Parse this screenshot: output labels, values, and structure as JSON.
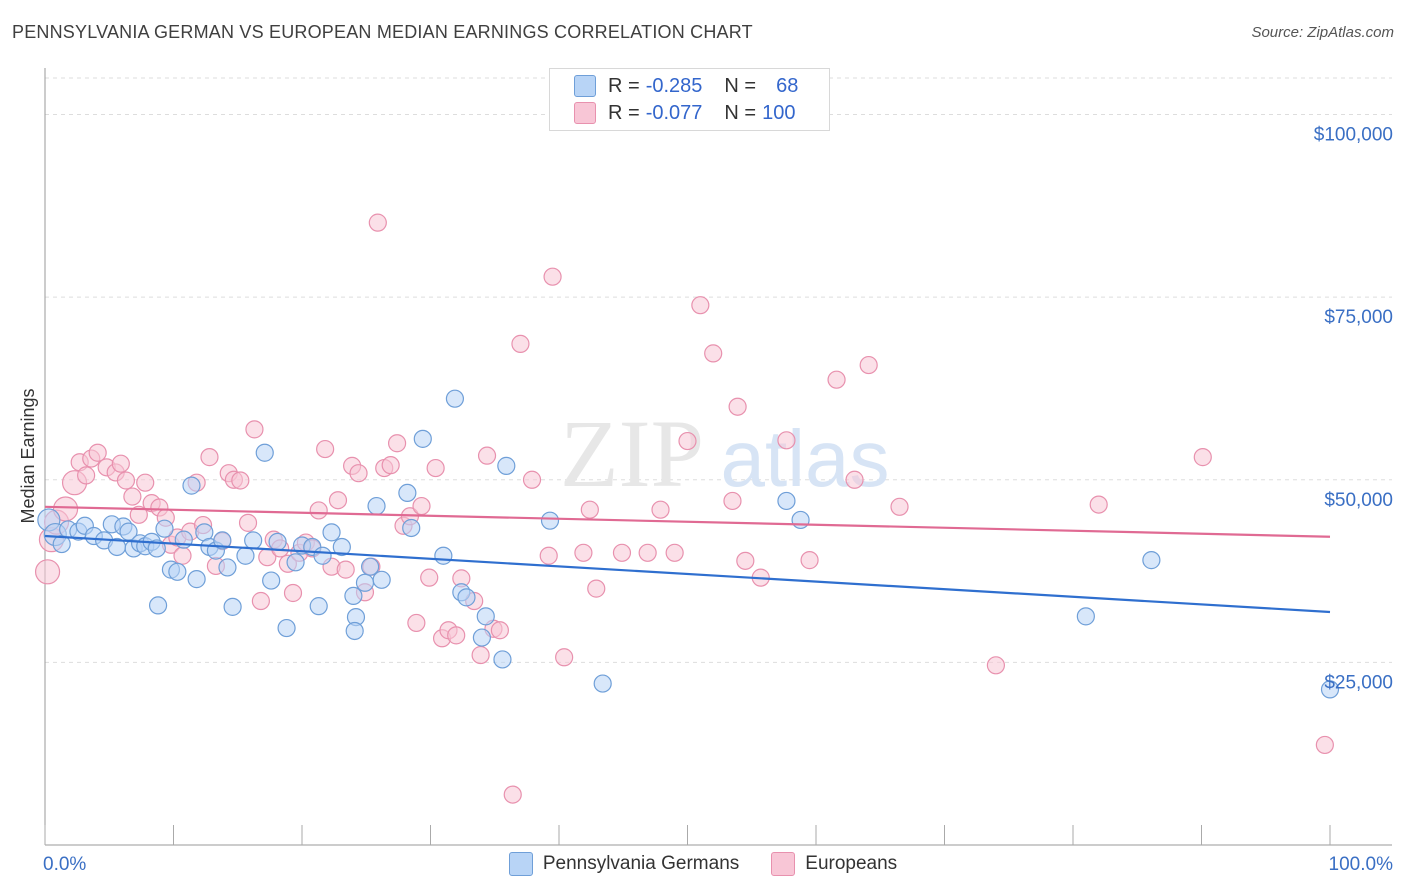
{
  "header": {
    "title": "PENNSYLVANIA GERMAN VS EUROPEAN MEDIAN EARNINGS CORRELATION CHART",
    "source": "Source: ZipAtlas.com"
  },
  "watermark": {
    "zip": "ZIP",
    "atlas": "atlas"
  },
  "legend": {
    "rows": [
      {
        "r_label": "R =",
        "r_value": "-0.285",
        "n_label": "N =",
        "n_value": "68"
      },
      {
        "r_label": "R =",
        "r_value": "-0.077",
        "n_label": "N =",
        "n_value": "100"
      }
    ]
  },
  "colors": {
    "blue_fill": "#b8d4f6",
    "blue_stroke": "#6f9fd8",
    "blue_line": "#2f6fcf",
    "pink_fill": "#f8c6d6",
    "pink_stroke": "#e891ae",
    "pink_line": "#e06a93",
    "axis_text": "#3a6fc4",
    "grid": "#dddddd"
  },
  "chart_data": {
    "type": "scatter",
    "title": "PENNSYLVANIA GERMAN VS EUROPEAN MEDIAN EARNINGS CORRELATION CHART",
    "xlabel": "",
    "ylabel": "Median Earnings",
    "xlim": [
      0,
      100
    ],
    "ylim": [
      0,
      105000
    ],
    "x_tick_labels": [
      "0.0%",
      "100.0%"
    ],
    "y_ticks": [
      25000,
      50000,
      75000,
      100000
    ],
    "y_tick_labels": [
      "$25,000",
      "$50,000",
      "$75,000",
      "$100,000"
    ],
    "grid": true,
    "legend_position": "top-center",
    "series": [
      {
        "name": "Pennsylvania Germans",
        "r": -0.285,
        "n": 68,
        "trend": {
          "x": [
            0,
            100
          ],
          "y": [
            42300,
            31900
          ]
        },
        "points": [
          {
            "x": 0.3,
            "y": 44500
          },
          {
            "x": 0.8,
            "y": 42500
          },
          {
            "x": 1.3,
            "y": 41200
          },
          {
            "x": 1.8,
            "y": 43200
          },
          {
            "x": 2.6,
            "y": 42900
          },
          {
            "x": 3.1,
            "y": 43700
          },
          {
            "x": 3.8,
            "y": 42300
          },
          {
            "x": 4.6,
            "y": 41700
          },
          {
            "x": 5.2,
            "y": 43900
          },
          {
            "x": 5.6,
            "y": 40800
          },
          {
            "x": 6.1,
            "y": 43600
          },
          {
            "x": 6.5,
            "y": 42900
          },
          {
            "x": 6.9,
            "y": 40600
          },
          {
            "x": 7.4,
            "y": 41300
          },
          {
            "x": 7.8,
            "y": 40900
          },
          {
            "x": 8.3,
            "y": 41500
          },
          {
            "x": 8.7,
            "y": 40600
          },
          {
            "x": 8.8,
            "y": 32800
          },
          {
            "x": 9.3,
            "y": 43300
          },
          {
            "x": 9.8,
            "y": 37700
          },
          {
            "x": 10.3,
            "y": 37400
          },
          {
            "x": 10.8,
            "y": 41800
          },
          {
            "x": 11.4,
            "y": 49200
          },
          {
            "x": 11.8,
            "y": 36400
          },
          {
            "x": 12.4,
            "y": 42800
          },
          {
            "x": 12.8,
            "y": 40800
          },
          {
            "x": 13.3,
            "y": 40300
          },
          {
            "x": 13.8,
            "y": 41700
          },
          {
            "x": 14.2,
            "y": 38000
          },
          {
            "x": 14.6,
            "y": 32600
          },
          {
            "x": 15.6,
            "y": 39600
          },
          {
            "x": 16.2,
            "y": 41700
          },
          {
            "x": 17.1,
            "y": 53700
          },
          {
            "x": 17.6,
            "y": 36200
          },
          {
            "x": 18.1,
            "y": 41500
          },
          {
            "x": 18.8,
            "y": 29700
          },
          {
            "x": 19.5,
            "y": 38700
          },
          {
            "x": 20.0,
            "y": 41000
          },
          {
            "x": 20.8,
            "y": 40800
          },
          {
            "x": 21.3,
            "y": 32700
          },
          {
            "x": 21.6,
            "y": 39600
          },
          {
            "x": 22.3,
            "y": 42800
          },
          {
            "x": 23.1,
            "y": 40800
          },
          {
            "x": 24.0,
            "y": 34100
          },
          {
            "x": 24.2,
            "y": 31200
          },
          {
            "x": 24.1,
            "y": 29300
          },
          {
            "x": 24.9,
            "y": 35900
          },
          {
            "x": 25.3,
            "y": 38100
          },
          {
            "x": 25.8,
            "y": 46400
          },
          {
            "x": 26.2,
            "y": 36300
          },
          {
            "x": 28.2,
            "y": 48200
          },
          {
            "x": 28.5,
            "y": 43400
          },
          {
            "x": 29.4,
            "y": 55600
          },
          {
            "x": 31.0,
            "y": 39600
          },
          {
            "x": 31.9,
            "y": 61100
          },
          {
            "x": 32.4,
            "y": 34600
          },
          {
            "x": 32.8,
            "y": 33900
          },
          {
            "x": 34.0,
            "y": 28400
          },
          {
            "x": 34.3,
            "y": 31300
          },
          {
            "x": 35.6,
            "y": 25400
          },
          {
            "x": 35.9,
            "y": 51900
          },
          {
            "x": 39.3,
            "y": 44400
          },
          {
            "x": 43.4,
            "y": 22100
          },
          {
            "x": 57.7,
            "y": 47100
          },
          {
            "x": 58.8,
            "y": 44500
          },
          {
            "x": 81.0,
            "y": 31300
          },
          {
            "x": 86.1,
            "y": 39000
          },
          {
            "x": 100.0,
            "y": 21300
          }
        ]
      },
      {
        "name": "Europeans",
        "r": -0.077,
        "n": 100,
        "trend": {
          "x": [
            0,
            100
          ],
          "y": [
            46300,
            42200
          ]
        },
        "points": [
          {
            "x": 0.2,
            "y": 37400
          },
          {
            "x": 0.5,
            "y": 41800
          },
          {
            "x": 0.9,
            "y": 44200
          },
          {
            "x": 1.6,
            "y": 46000
          },
          {
            "x": 2.3,
            "y": 49600
          },
          {
            "x": 2.7,
            "y": 52400
          },
          {
            "x": 3.2,
            "y": 50600
          },
          {
            "x": 3.6,
            "y": 52900
          },
          {
            "x": 4.1,
            "y": 53700
          },
          {
            "x": 4.8,
            "y": 51700
          },
          {
            "x": 5.5,
            "y": 51000
          },
          {
            "x": 5.9,
            "y": 52200
          },
          {
            "x": 6.3,
            "y": 49900
          },
          {
            "x": 6.8,
            "y": 47700
          },
          {
            "x": 7.3,
            "y": 45200
          },
          {
            "x": 7.8,
            "y": 49600
          },
          {
            "x": 8.3,
            "y": 46800
          },
          {
            "x": 8.9,
            "y": 46200
          },
          {
            "x": 9.4,
            "y": 44800
          },
          {
            "x": 9.8,
            "y": 41100
          },
          {
            "x": 10.3,
            "y": 42100
          },
          {
            "x": 10.7,
            "y": 39600
          },
          {
            "x": 11.3,
            "y": 42900
          },
          {
            "x": 11.8,
            "y": 49600
          },
          {
            "x": 12.3,
            "y": 43800
          },
          {
            "x": 12.8,
            "y": 53100
          },
          {
            "x": 13.3,
            "y": 38200
          },
          {
            "x": 13.8,
            "y": 41600
          },
          {
            "x": 14.3,
            "y": 50900
          },
          {
            "x": 14.7,
            "y": 50000
          },
          {
            "x": 15.2,
            "y": 49900
          },
          {
            "x": 15.8,
            "y": 44100
          },
          {
            "x": 16.3,
            "y": 56900
          },
          {
            "x": 16.8,
            "y": 33400
          },
          {
            "x": 17.3,
            "y": 39400
          },
          {
            "x": 17.8,
            "y": 41800
          },
          {
            "x": 18.3,
            "y": 40600
          },
          {
            "x": 18.9,
            "y": 38500
          },
          {
            "x": 19.3,
            "y": 34500
          },
          {
            "x": 19.8,
            "y": 40000
          },
          {
            "x": 20.3,
            "y": 41400
          },
          {
            "x": 20.8,
            "y": 40600
          },
          {
            "x": 21.3,
            "y": 45800
          },
          {
            "x": 21.8,
            "y": 54200
          },
          {
            "x": 22.3,
            "y": 38100
          },
          {
            "x": 22.8,
            "y": 47200
          },
          {
            "x": 23.4,
            "y": 37700
          },
          {
            "x": 23.9,
            "y": 51900
          },
          {
            "x": 24.4,
            "y": 50900
          },
          {
            "x": 24.9,
            "y": 34600
          },
          {
            "x": 25.4,
            "y": 38100
          },
          {
            "x": 25.9,
            "y": 85200
          },
          {
            "x": 26.4,
            "y": 51600
          },
          {
            "x": 26.9,
            "y": 52000
          },
          {
            "x": 27.4,
            "y": 55000
          },
          {
            "x": 27.9,
            "y": 43700
          },
          {
            "x": 28.4,
            "y": 45000
          },
          {
            "x": 28.9,
            "y": 30400
          },
          {
            "x": 29.3,
            "y": 46400
          },
          {
            "x": 29.9,
            "y": 36600
          },
          {
            "x": 30.4,
            "y": 51600
          },
          {
            "x": 30.9,
            "y": 28300
          },
          {
            "x": 31.4,
            "y": 29400
          },
          {
            "x": 32.0,
            "y": 28700
          },
          {
            "x": 32.4,
            "y": 36500
          },
          {
            "x": 33.4,
            "y": 33400
          },
          {
            "x": 33.9,
            "y": 26000
          },
          {
            "x": 34.4,
            "y": 53300
          },
          {
            "x": 34.9,
            "y": 29600
          },
          {
            "x": 35.4,
            "y": 29400
          },
          {
            "x": 36.4,
            "y": 6900
          },
          {
            "x": 37.0,
            "y": 68600
          },
          {
            "x": 37.9,
            "y": 50000
          },
          {
            "x": 39.2,
            "y": 39600
          },
          {
            "x": 39.5,
            "y": 77800
          },
          {
            "x": 40.4,
            "y": 25700
          },
          {
            "x": 41.9,
            "y": 40000
          },
          {
            "x": 42.4,
            "y": 45900
          },
          {
            "x": 42.9,
            "y": 35100
          },
          {
            "x": 44.9,
            "y": 40000
          },
          {
            "x": 46.9,
            "y": 40000
          },
          {
            "x": 47.9,
            "y": 45900
          },
          {
            "x": 49.0,
            "y": 40000
          },
          {
            "x": 50.0,
            "y": 55300
          },
          {
            "x": 51.0,
            "y": 73900
          },
          {
            "x": 52.0,
            "y": 67300
          },
          {
            "x": 53.5,
            "y": 47100
          },
          {
            "x": 53.9,
            "y": 60000
          },
          {
            "x": 54.5,
            "y": 38900
          },
          {
            "x": 55.7,
            "y": 36600
          },
          {
            "x": 57.7,
            "y": 55400
          },
          {
            "x": 59.5,
            "y": 39000
          },
          {
            "x": 61.6,
            "y": 63700
          },
          {
            "x": 63.0,
            "y": 50000
          },
          {
            "x": 64.1,
            "y": 65700
          },
          {
            "x": 66.5,
            "y": 46300
          },
          {
            "x": 74.0,
            "y": 24600
          },
          {
            "x": 82.0,
            "y": 46600
          },
          {
            "x": 90.1,
            "y": 53100
          },
          {
            "x": 99.6,
            "y": 13700
          }
        ]
      }
    ]
  },
  "bottom_legend": {
    "items": [
      "Pennsylvania Germans",
      "Europeans"
    ]
  }
}
